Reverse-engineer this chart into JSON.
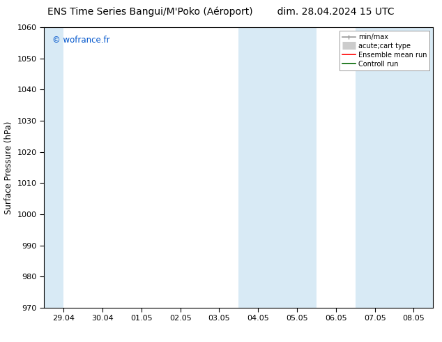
{
  "title_left": "ENS Time Series Bangui/M'Poko (Aéroport)",
  "title_right": "dim. 28.04.2024 15 UTC",
  "ylabel": "Surface Pressure (hPa)",
  "ylim": [
    970,
    1060
  ],
  "yticks": [
    970,
    980,
    990,
    1000,
    1010,
    1020,
    1030,
    1040,
    1050,
    1060
  ],
  "xtick_labels": [
    "29.04",
    "30.04",
    "01.05",
    "02.05",
    "03.05",
    "04.05",
    "05.05",
    "06.05",
    "07.05",
    "08.05"
  ],
  "watermark": "© wofrance.fr",
  "watermark_color": "#0055cc",
  "bg_color": "#ffffff",
  "plot_bg_color": "#ffffff",
  "shaded_color": "#d8eaf5",
  "legend_items": [
    {
      "label": "min/max",
      "color": "#999999",
      "lw": 1.2,
      "style": "minmax"
    },
    {
      "label": "acute;cart type",
      "color": "#cccccc",
      "lw": 8,
      "style": "fill"
    },
    {
      "label": "Ensemble mean run",
      "color": "#ff0000",
      "lw": 1.2,
      "style": "line"
    },
    {
      "label": "Controll run",
      "color": "#006600",
      "lw": 1.2,
      "style": "line"
    }
  ],
  "title_fontsize": 10,
  "tick_fontsize": 8,
  "ylabel_fontsize": 8.5,
  "watermark_fontsize": 8.5
}
